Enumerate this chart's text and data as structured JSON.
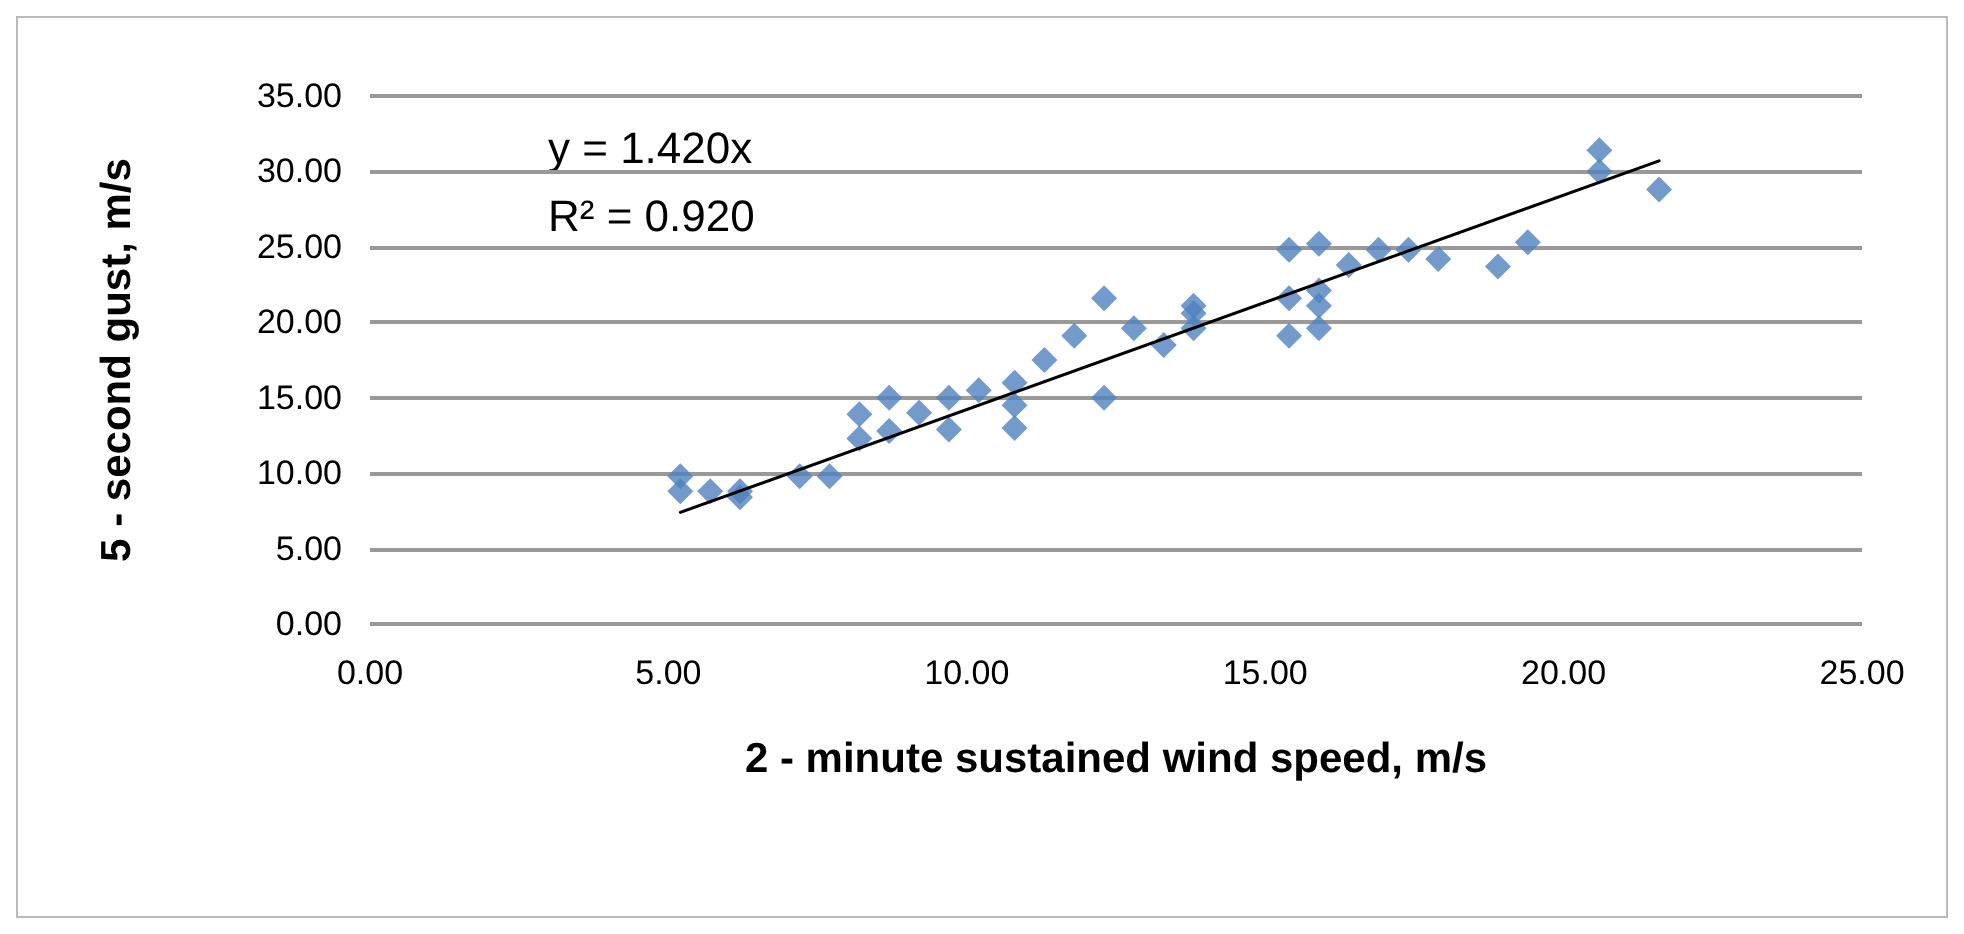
{
  "chart_data": {
    "type": "scatter",
    "xlabel": "2 - minute sustained wind speed, m/s",
    "ylabel": "5 - second gust, m/s",
    "annotations": [
      "y = 1.420x",
      "R² = 0.920"
    ],
    "series": [
      {
        "color": "#4f81bd",
        "marker": "diamond",
        "x": [
          5.2,
          5.2,
          5.7,
          6.2,
          6.2,
          7.2,
          7.7,
          8.2,
          8.2,
          8.7,
          8.7,
          9.2,
          9.7,
          9.7,
          10.2,
          10.8,
          10.8,
          10.8,
          11.3,
          11.8,
          12.3,
          12.3,
          12.8,
          13.3,
          13.8,
          13.8,
          13.8,
          15.4,
          15.4,
          15.4,
          15.9,
          15.9,
          15.9,
          15.9,
          16.4,
          16.9,
          17.4,
          17.9,
          18.9,
          19.4,
          20.6,
          20.6,
          21.6
        ],
        "values": [
          9.8,
          8.8,
          8.8,
          8.8,
          8.4,
          9.8,
          9.8,
          13.9,
          12.3,
          15.0,
          12.8,
          14.0,
          15.0,
          12.9,
          15.5,
          16.0,
          14.5,
          13.0,
          17.5,
          19.1,
          21.6,
          15.0,
          19.6,
          18.5,
          21.1,
          20.6,
          19.6,
          24.8,
          21.6,
          19.1,
          25.2,
          22.1,
          21.1,
          19.6,
          23.8,
          24.8,
          24.8,
          24.2,
          23.7,
          25.3,
          31.4,
          30.0,
          28.8
        ]
      },
      {
        "type": "line",
        "color": "#000000",
        "marker": "none",
        "line_style": "solid",
        "x": [
          5.2,
          21.6
        ],
        "values": [
          7.4,
          30.7
        ]
      }
    ],
    "xlim": [
      0,
      25
    ],
    "xticks": [
      {
        "value": 0,
        "label": "0.00"
      },
      {
        "value": 5,
        "label": "5.00"
      },
      {
        "value": 10,
        "label": "10.00"
      },
      {
        "value": 15,
        "label": "15.00"
      },
      {
        "value": 20,
        "label": "20.00"
      },
      {
        "value": 25,
        "label": "25.00"
      }
    ],
    "ylim": [
      0,
      35
    ],
    "yticks": [
      {
        "value": 0,
        "label": "0.00"
      },
      {
        "value": 5,
        "label": "5.00"
      },
      {
        "value": 10,
        "label": "10.00"
      },
      {
        "value": 15,
        "label": "15.00"
      },
      {
        "value": 20,
        "label": "20.00"
      },
      {
        "value": 25,
        "label": "25.00"
      },
      {
        "value": 30,
        "label": "30.00"
      },
      {
        "value": 35,
        "label": "35.00"
      }
    ],
    "grid": "y"
  }
}
